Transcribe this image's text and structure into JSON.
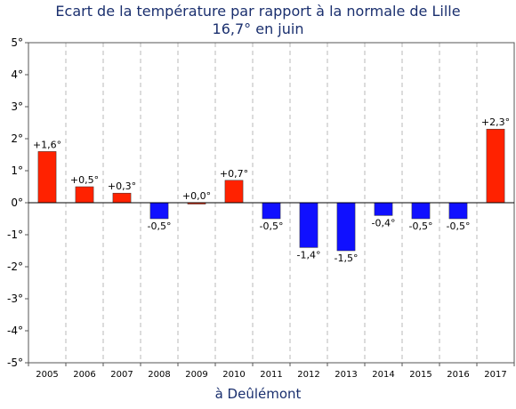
{
  "chart_data": {
    "type": "bar",
    "title": "Ecart de la température par rapport à la normale de Lille",
    "subtitle": "16,7° en juin",
    "xlabel": "à Deûlémont",
    "ylabel": "",
    "categories": [
      "2005",
      "2006",
      "2007",
      "2008",
      "2009",
      "2010",
      "2011",
      "2012",
      "2013",
      "2014",
      "2015",
      "2016",
      "2017"
    ],
    "values": [
      1.6,
      0.5,
      0.3,
      -0.5,
      0.0,
      0.7,
      -0.5,
      -1.4,
      -1.5,
      -0.4,
      -0.5,
      -0.5,
      2.3
    ],
    "data_labels": [
      "+1,6°",
      "+0,5°",
      "+0,3°",
      "-0,5°",
      "+0,0°",
      "+0,7°",
      "-0,5°",
      "-1,4°",
      "-1,5°",
      "-0,4°",
      "-0,5°",
      "-0,5°",
      "+2,3°"
    ],
    "ylim": [
      -5,
      5
    ],
    "yticks": [
      5,
      4,
      3,
      2,
      1,
      0,
      -1,
      -2,
      -3,
      -4,
      -5
    ],
    "ytick_labels": [
      "5°",
      "4°",
      "3°",
      "2°",
      "1°",
      "0°",
      "-1°",
      "-2°",
      "-3°",
      "-4°",
      "-5°"
    ],
    "grid": "vertical dashed",
    "colors": {
      "positive": "#ff2200",
      "negative": "#1010ff",
      "title": "#1a2f6e"
    }
  }
}
